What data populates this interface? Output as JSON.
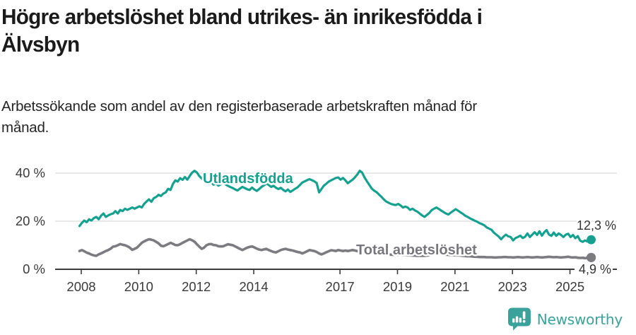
{
  "header": {
    "title_line1": "Högre arbetslöshet bland utrikes- än inrikesfödda i",
    "title_line2": "Älvsbyn",
    "subtitle_line1": "Arbetssökande som andel av den registerbaserade arbetskraften månad för",
    "subtitle_line2": "månad."
  },
  "footer": {
    "brand_name": "Newsworthy"
  },
  "colors": {
    "foreign_series": "#15a08f",
    "total_series": "#7b7b80",
    "axis": "#3c3c3c",
    "grid": "#dcdcdc",
    "tick_text": "#3a3a3a",
    "value_text": "#333333",
    "brand": "#3aa29a",
    "title_text": "#1b1b1b"
  },
  "chart_data": {
    "type": "line",
    "title": "Högre arbetslöshet bland utrikes- än inrikesfödda i Älvsbyn",
    "subtitle": "Arbetssökande som andel av den registerbaserade arbetskraften månad för månad.",
    "unit": "%",
    "x_unit": "month",
    "x_range": [
      "2008-01",
      "2025-10"
    ],
    "x_tick_years": [
      2008,
      2010,
      2012,
      2014,
      2017,
      2019,
      2021,
      2023,
      2025
    ],
    "x_tick_labels": [
      "2008",
      "2010",
      "2012",
      "2014",
      "2017",
      "2019",
      "2021",
      "2023",
      "2025"
    ],
    "y_ticks": [
      {
        "value": 0,
        "label": "0 %"
      },
      {
        "value": 20,
        "label": "20 %"
      },
      {
        "value": 40,
        "label": "40 %"
      }
    ],
    "ylim": [
      0,
      44
    ],
    "grid": "horizontal",
    "legend_position": "inline-labels",
    "series": [
      {
        "name": "Utlandsfödda",
        "color": "#15a08f",
        "end_label": "12,3 %",
        "end_value": 12.3,
        "values": [
          18.0,
          19.3,
          20.3,
          19.6,
          20.8,
          20.3,
          21.3,
          21.8,
          20.8,
          22.3,
          23.2,
          21.8,
          22.4,
          22.9,
          23.2,
          24.2,
          23.2,
          24.7,
          24.2,
          25.2,
          24.7,
          25.2,
          25.7,
          25.2,
          25.7,
          26.2,
          25.7,
          27.2,
          28.2,
          29.1,
          28.1,
          29.6,
          30.1,
          31.0,
          30.5,
          31.5,
          32.0,
          33.5,
          33.0,
          35.5,
          37.0,
          36.5,
          37.9,
          37.2,
          38.4,
          37.3,
          38.8,
          40.2,
          41.0,
          40.3,
          38.8,
          37.8,
          37.0,
          36.2,
          35.6,
          36.2,
          35.2,
          35.8,
          34.8,
          35.4,
          36.0,
          35.3,
          34.7,
          34.2,
          33.8,
          33.2,
          32.8,
          33.6,
          34.3,
          33.8,
          33.3,
          33.0,
          34.0,
          33.2,
          32.6,
          33.4,
          34.3,
          34.9,
          35.7,
          35.1,
          34.3,
          34.8,
          33.9,
          33.4,
          33.9,
          33.1,
          32.4,
          33.2,
          32.2,
          32.8,
          33.5,
          34.1,
          35.1,
          36.1,
          36.6,
          37.1,
          37.5,
          37.1,
          36.6,
          35.9,
          32.0,
          33.4,
          34.8,
          35.6,
          36.5,
          37.0,
          37.5,
          38.0,
          38.2,
          37.3,
          38.0,
          37.0,
          35.8,
          36.6,
          37.3,
          38.3,
          39.5,
          41.0,
          40.2,
          38.2,
          36.6,
          35.1,
          33.6,
          32.7,
          32.1,
          31.1,
          30.2,
          29.1,
          28.2,
          27.7,
          27.2,
          26.9,
          26.7,
          27.2,
          26.6,
          25.7,
          26.1,
          25.7,
          24.7,
          25.2,
          24.5,
          24.0,
          23.2,
          22.4,
          21.8,
          22.6,
          23.4,
          24.6,
          25.2,
          25.7,
          25.1,
          24.4,
          23.8,
          23.2,
          22.8,
          23.6,
          24.3,
          25.0,
          24.4,
          23.7,
          23.1,
          22.3,
          21.8,
          21.2,
          20.7,
          20.2,
          19.8,
          19.2,
          18.8,
          18.3,
          17.4,
          16.9,
          16.4,
          15.2,
          14.4,
          13.6,
          12.5,
          13.6,
          14.4,
          13.7,
          13.4,
          12.0,
          13.0,
          13.4,
          14.0,
          13.0,
          13.5,
          14.9,
          13.4,
          14.4,
          15.4,
          14.3,
          15.8,
          14.0,
          15.4,
          16.3,
          14.4,
          13.9,
          15.3,
          13.9,
          14.9,
          14.3,
          13.4,
          14.4,
          14.8,
          13.4,
          14.3,
          12.9,
          13.8,
          11.9,
          11.4,
          12.0,
          11.6,
          12.3
        ]
      },
      {
        "name": "Total arbetslöshet",
        "color": "#7b7b80",
        "end_label": "4,9 %",
        "end_value": 4.9,
        "values": [
          7.6,
          8.0,
          7.5,
          6.9,
          6.6,
          6.1,
          5.8,
          5.6,
          6.2,
          6.6,
          7.1,
          7.6,
          8.0,
          8.6,
          9.4,
          9.6,
          10.0,
          10.5,
          10.2,
          10.0,
          9.6,
          9.0,
          8.1,
          8.5,
          9.0,
          10.0,
          11.0,
          11.6,
          12.1,
          12.5,
          12.3,
          12.0,
          11.4,
          10.8,
          9.8,
          9.6,
          10.0,
          10.5,
          11.0,
          10.6,
          10.1,
          10.0,
          10.4,
          11.0,
          11.5,
          12.0,
          12.5,
          12.1,
          11.5,
          10.4,
          9.4,
          8.5,
          9.0,
          10.0,
          10.4,
          10.5,
          10.1,
          10.0,
          9.6,
          9.5,
          9.6,
          10.0,
          10.4,
          10.2,
          10.0,
          9.5,
          9.0,
          8.5,
          8.0,
          8.5,
          9.0,
          9.3,
          9.5,
          9.1,
          8.6,
          8.2,
          8.0,
          8.3,
          8.5,
          8.0,
          7.6,
          7.2,
          7.0,
          7.5,
          8.0,
          8.3,
          8.5,
          8.2,
          8.0,
          7.8,
          7.5,
          7.2,
          7.0,
          6.6,
          7.0,
          7.5,
          8.0,
          7.8,
          7.6,
          7.2,
          6.6,
          6.2,
          6.6,
          7.1,
          7.5,
          7.9,
          7.8,
          7.6,
          8.0,
          7.8,
          7.6,
          7.8,
          7.6,
          7.8,
          8.0,
          7.8,
          7.6,
          7.4,
          7.2,
          7.1,
          7.0,
          6.9,
          6.8,
          6.7,
          6.6,
          6.5,
          6.4,
          6.3,
          6.2,
          6.1,
          6.1,
          6.0,
          6.0,
          6.1,
          6.0,
          5.9,
          5.9,
          5.8,
          5.8,
          5.7,
          5.7,
          5.6,
          5.6,
          5.6,
          5.6,
          5.7,
          5.9,
          6.2,
          6.4,
          6.5,
          6.4,
          6.3,
          6.2,
          6.1,
          6.0,
          5.9,
          5.9,
          5.8,
          5.8,
          5.7,
          5.6,
          5.5,
          5.4,
          5.4,
          5.3,
          5.2,
          5.2,
          5.1,
          5.1,
          5.1,
          5.0,
          5.0,
          5.0,
          4.9,
          4.9,
          5.0,
          5.0,
          5.1,
          5.1,
          5.0,
          5.0,
          4.9,
          5.0,
          5.1,
          5.0,
          4.9,
          5.0,
          5.1,
          5.0,
          4.9,
          5.0,
          5.1,
          5.0,
          4.9,
          5.0,
          5.1,
          5.2,
          5.1,
          5.0,
          5.1,
          5.0,
          4.9,
          5.0,
          5.1,
          5.2,
          5.0,
          4.9,
          5.0,
          4.8,
          4.7,
          4.8,
          4.6,
          4.8,
          4.9
        ]
      }
    ]
  }
}
